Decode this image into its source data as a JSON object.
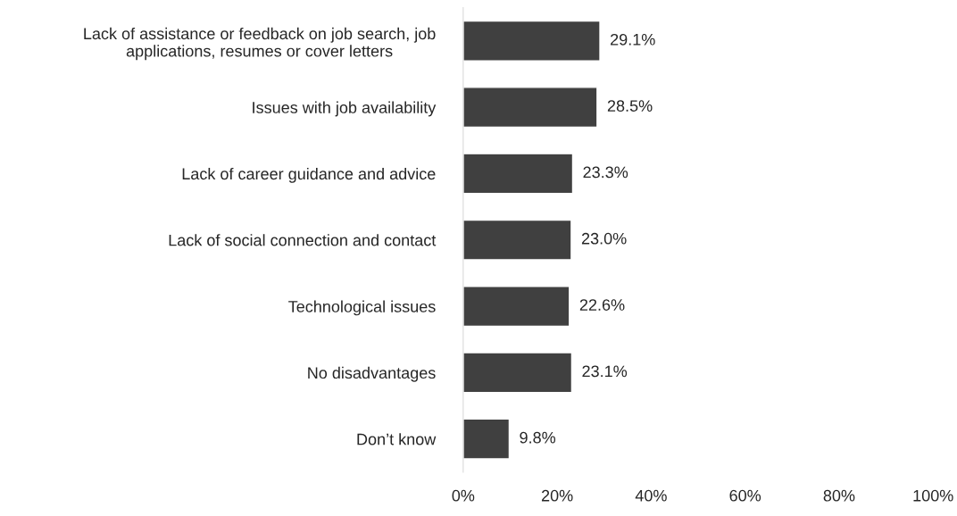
{
  "chart_data": {
    "type": "bar",
    "orientation": "horizontal",
    "categories": [
      "Lack of assistance or feedback on job search, job\napplications, resumes or cover letters",
      "Issues with job availability",
      "Lack of career guidance and advice",
      "Lack of social connection and contact",
      "Technological issues",
      "No disadvantages",
      "Don’t know"
    ],
    "values": [
      29.1,
      28.5,
      23.3,
      23.0,
      22.6,
      23.1,
      9.8
    ],
    "value_labels": [
      "29.1%",
      "28.5%",
      "23.3%",
      "23.0%",
      "22.6%",
      "23.1%",
      "9.8%"
    ],
    "color": "#404040",
    "xlim": [
      0,
      100
    ],
    "xticks": [
      {
        "value": 0,
        "label": "0%"
      },
      {
        "value": 20,
        "label": "20%"
      },
      {
        "value": 40,
        "label": "40%"
      },
      {
        "value": 60,
        "label": "60%"
      },
      {
        "value": 80,
        "label": "80%"
      },
      {
        "value": 100,
        "label": "100%"
      }
    ],
    "grid": false,
    "legend": false
  }
}
